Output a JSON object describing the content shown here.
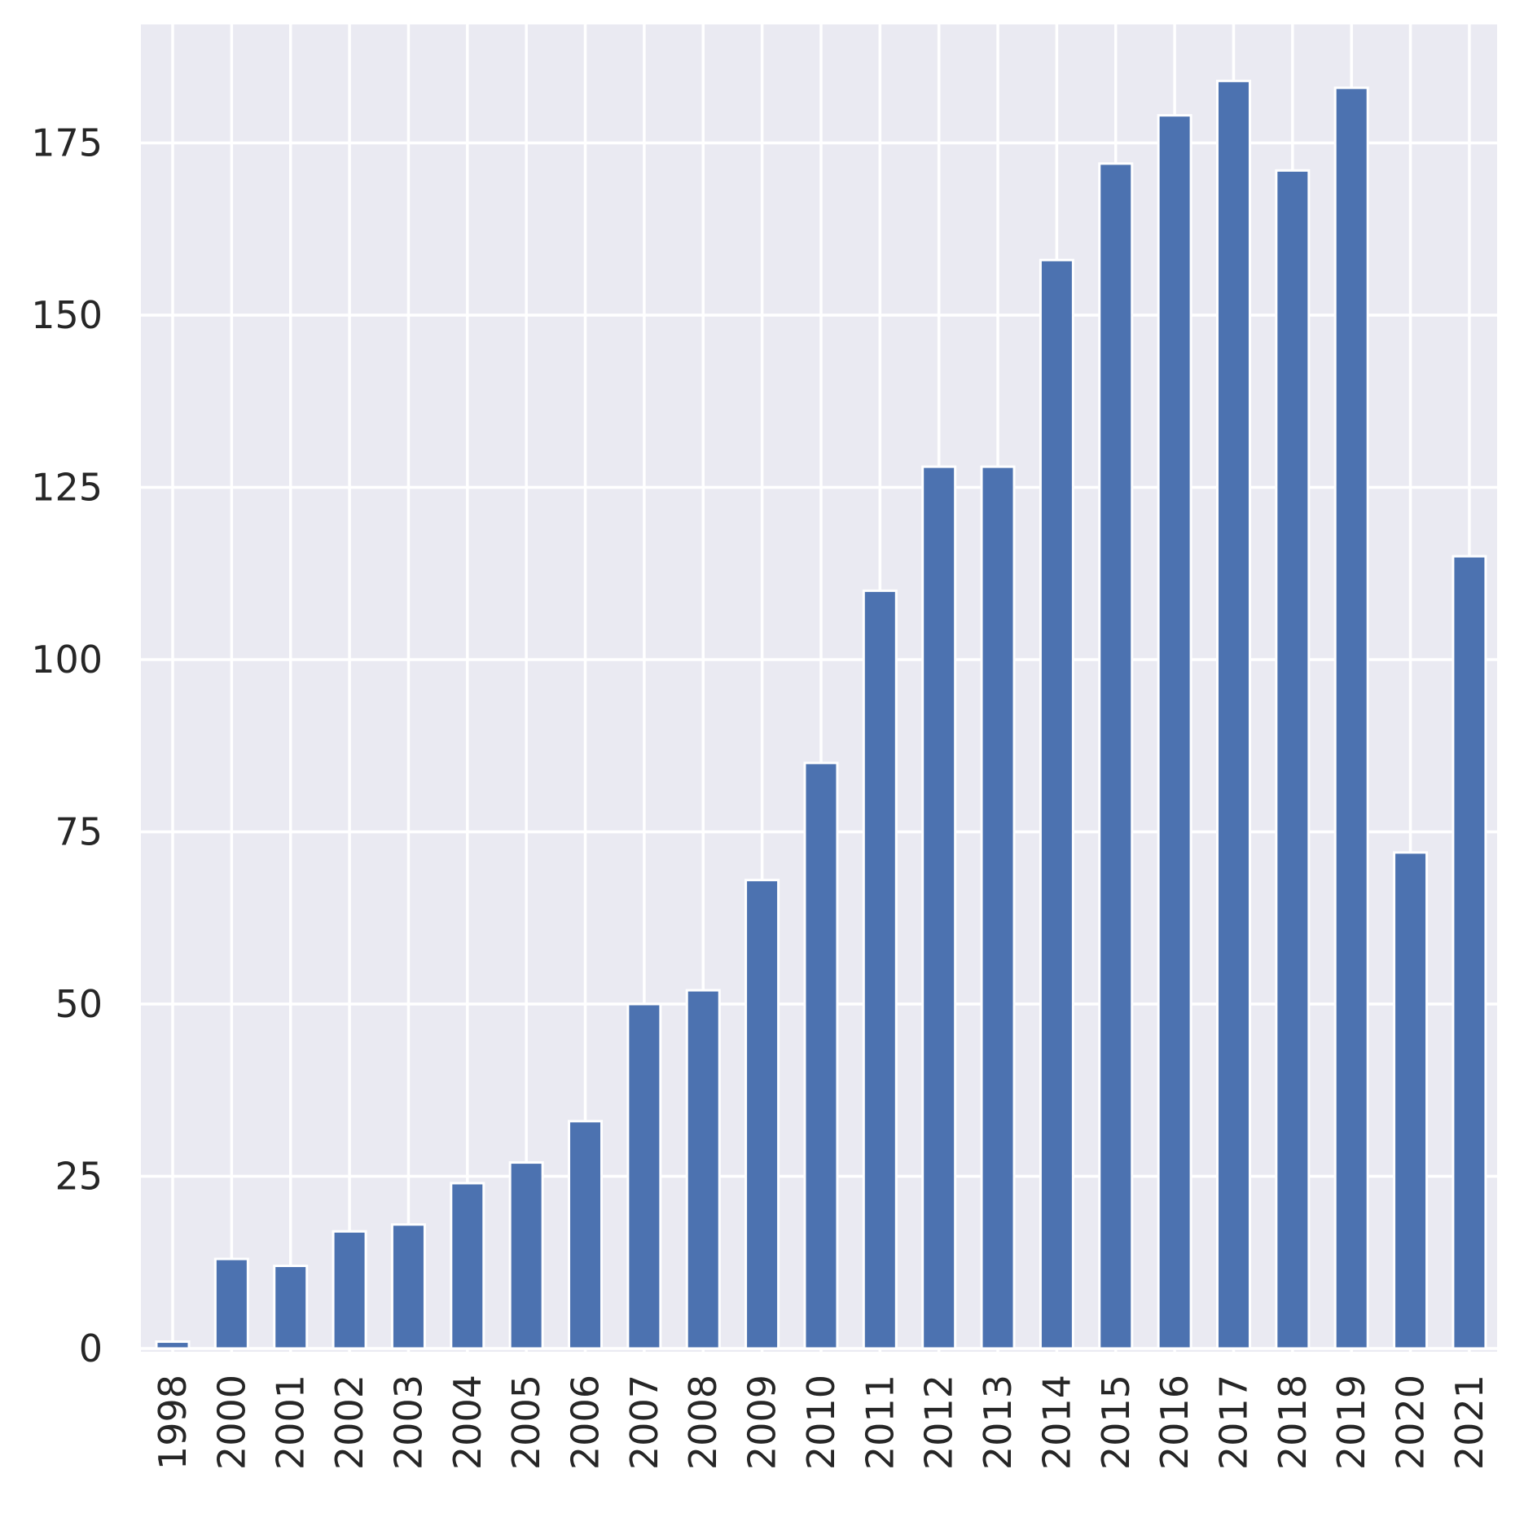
{
  "chart_data": {
    "type": "bar",
    "title": "",
    "xlabel": "",
    "ylabel": "",
    "categories": [
      "1998",
      "2000",
      "2001",
      "2002",
      "2003",
      "2004",
      "2005",
      "2006",
      "2007",
      "2008",
      "2009",
      "2010",
      "2011",
      "2012",
      "2013",
      "2014",
      "2015",
      "2016",
      "2017",
      "2018",
      "2019",
      "2020",
      "2021"
    ],
    "values": [
      1,
      13,
      12,
      17,
      18,
      24,
      27,
      33,
      50,
      52,
      68,
      85,
      110,
      128,
      128,
      158,
      172,
      179,
      184,
      171,
      183,
      72,
      115
    ],
    "ylim": [
      0,
      193
    ],
    "yticks": [
      "0",
      "25",
      "50",
      "75",
      "100",
      "125",
      "150",
      "175"
    ],
    "grid": true,
    "colors": {
      "bar": "#4c72b0",
      "background": "#eaeaf2",
      "grid": "#ffffff",
      "text": "#262626"
    }
  }
}
